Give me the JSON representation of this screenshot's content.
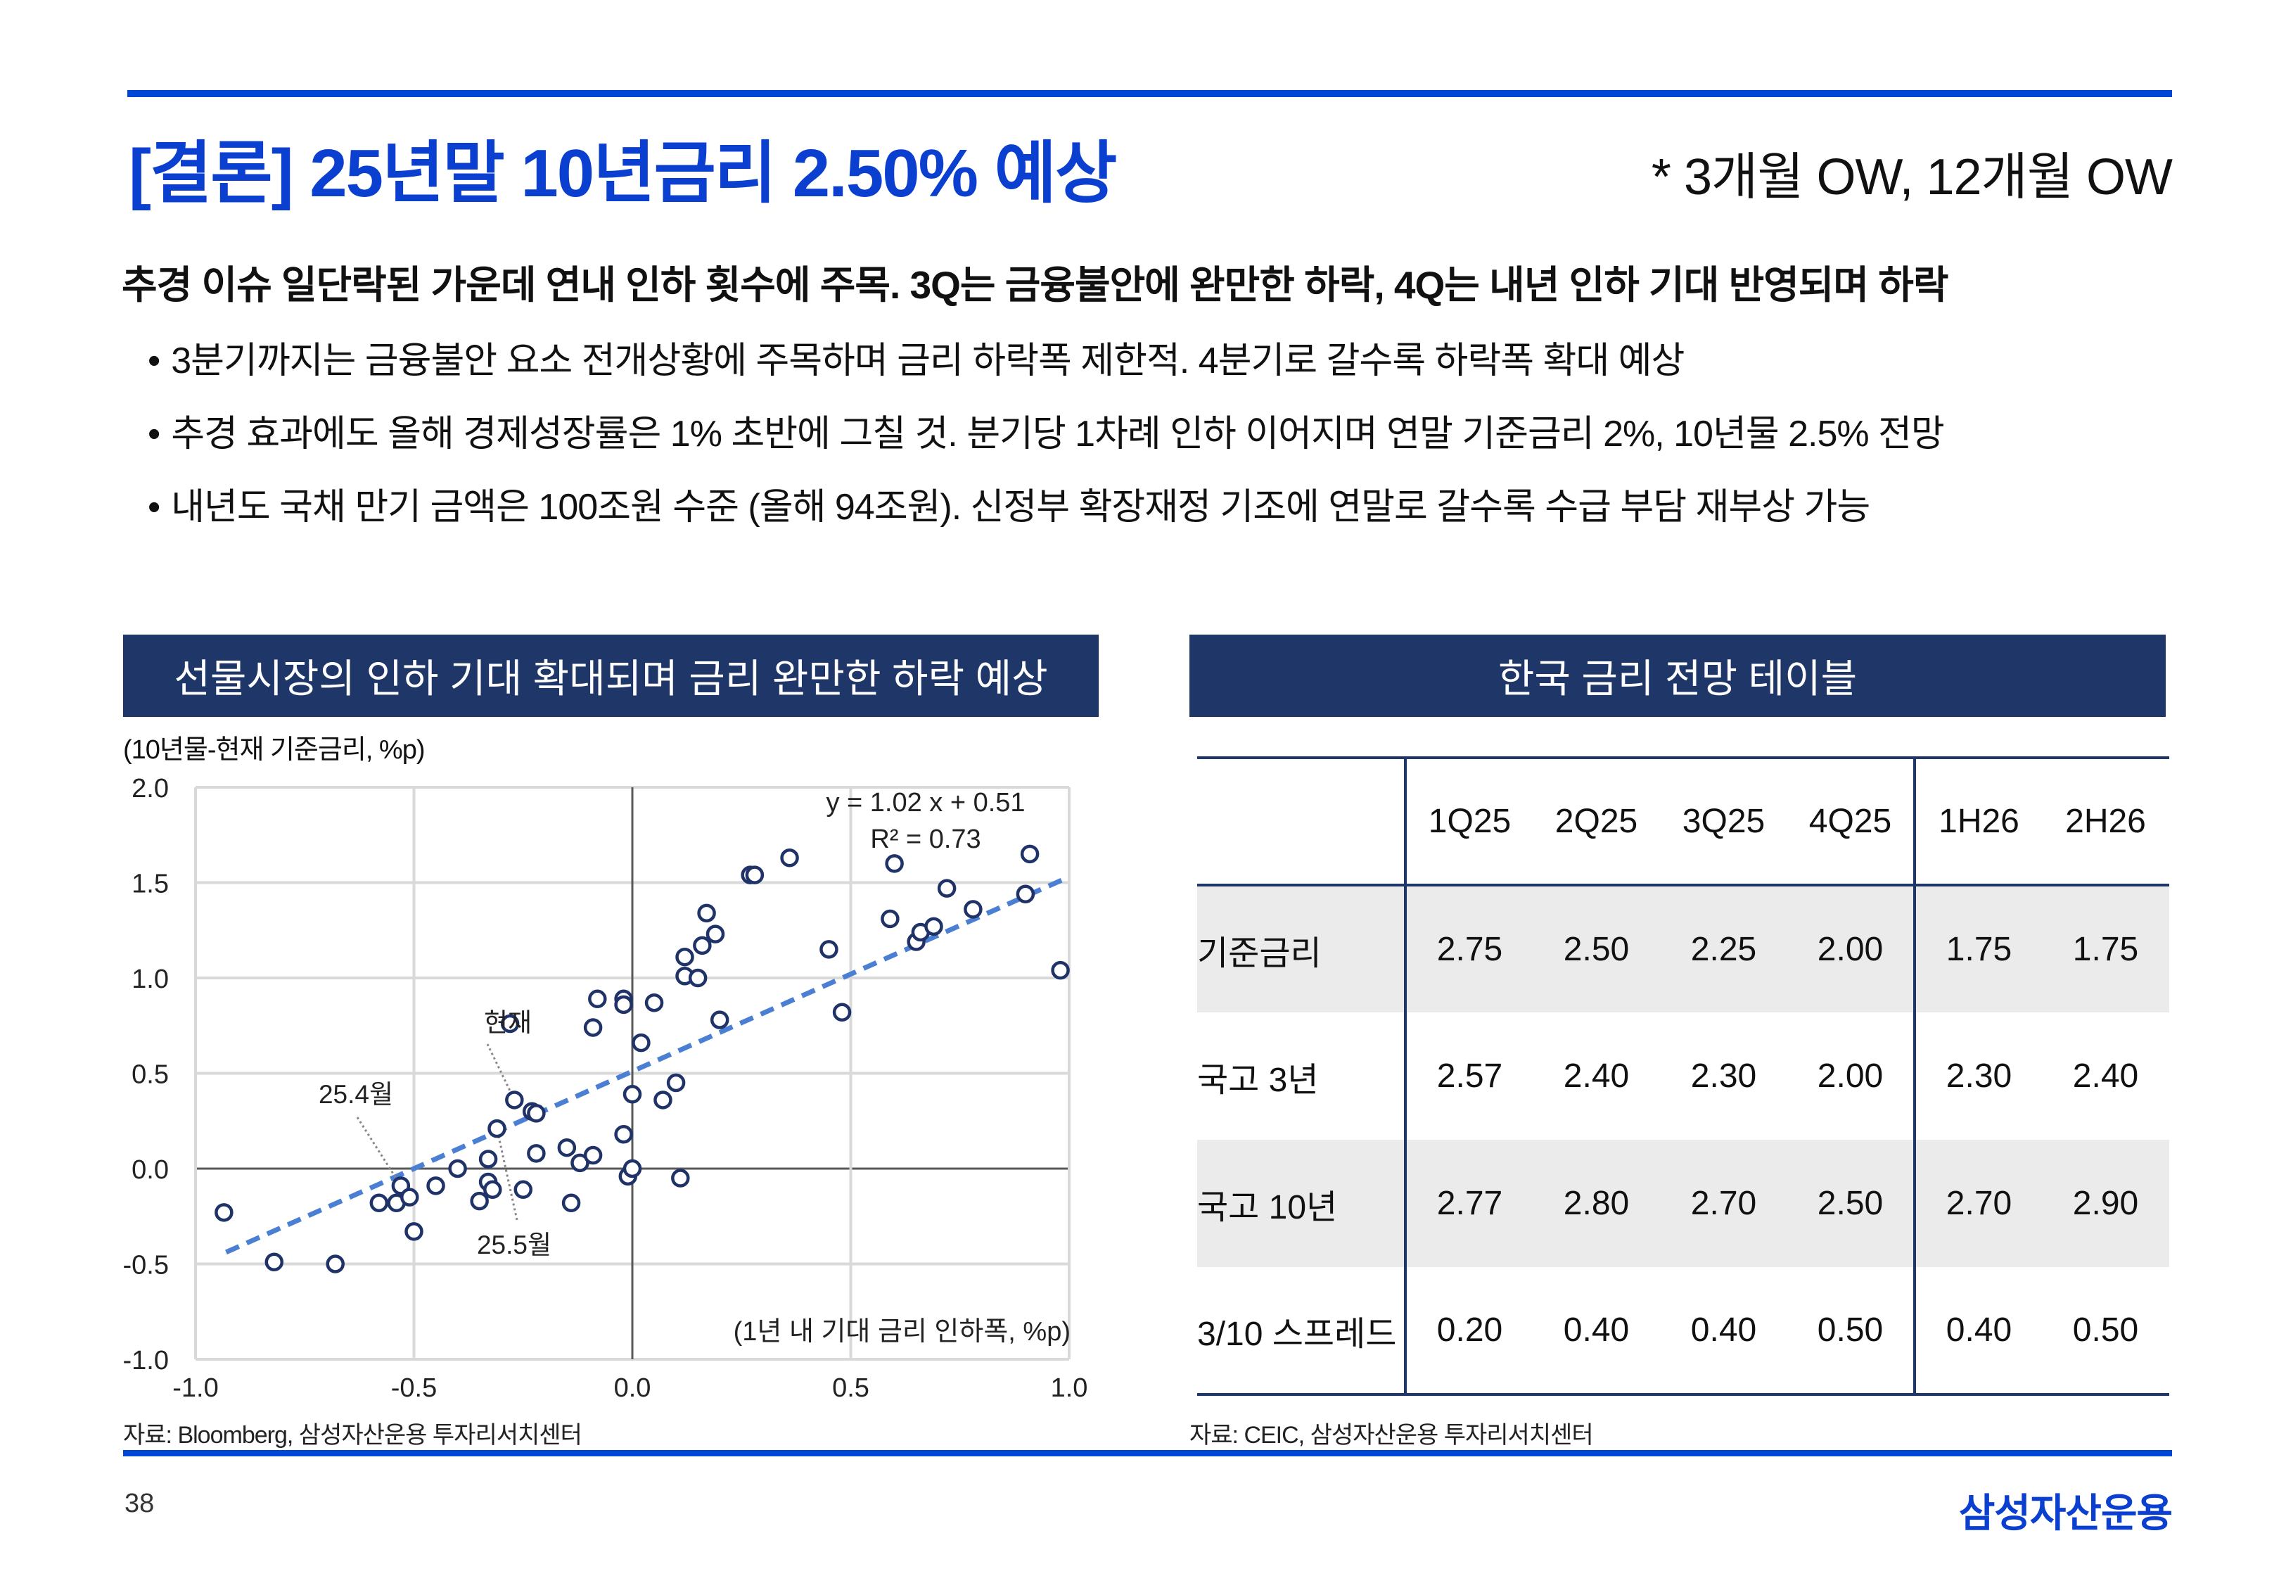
{
  "header": {
    "title": "[결론] 25년말 10년금리 2.50% 예상",
    "rating": "* 3개월 OW, 12개월 OW"
  },
  "summary": {
    "headline": "추경 이슈 일단락된 가운데 연내 인하 횟수에 주목. 3Q는 금융불안에 완만한 하락, 4Q는 내년 인하 기대 반영되며 하락",
    "bullets": [
      "3분기까지는 금융불안 요소 전개상황에 주목하며 금리 하락폭 제한적. 4분기로 갈수록 하락폭 확대 예상",
      "추경 효과에도 올해 경제성장률은 1% 초반에 그칠 것. 분기당 1차례 인하 이어지며 연말 기준금리 2%, 10년물 2.5% 전망",
      "내년도 국채 만기 금액은 100조원 수준 (올해 94조원). 신정부 확장재정 기조에 연말로 갈수록 수급 부담 재부상 가능"
    ]
  },
  "left_panel": {
    "title": "선물시장의 인하 기대 확대되며 금리 완만한 하락 예상",
    "unit": "(10년물-현재 기준금리, %p)",
    "source": "자료: Bloomberg, 삼성자산운용 투자리서치센터"
  },
  "chart_data": {
    "type": "scatter",
    "title": "선물시장의 인하 기대 확대되며 금리 완만한 하락 예상",
    "xlabel": "(1년 내 기대 금리 인하폭, %p)",
    "ylabel": "(10년물-현재 기준금리, %p)",
    "xlim": [
      -1.0,
      1.0
    ],
    "ylim": [
      -1.0,
      2.0
    ],
    "xticks": [
      "-1.0",
      "-0.5",
      "0.0",
      "0.5",
      "1.0"
    ],
    "yticks": [
      "2.0",
      "1.5",
      "1.0",
      "0.5",
      "0.0",
      "-0.5",
      "-1.0"
    ],
    "grid": true,
    "trendline": {
      "slope": 1.02,
      "intercept": 0.51,
      "equation": "y = 1.02 x + 0.51",
      "r2": "R² = 0.73",
      "x_range": [
        -0.93,
        1.0
      ]
    },
    "points": [
      [
        -0.935,
        -0.23
      ],
      [
        -0.82,
        -0.49
      ],
      [
        -0.68,
        -0.5
      ],
      [
        -0.58,
        -0.18
      ],
      [
        -0.54,
        -0.18
      ],
      [
        -0.53,
        -0.09
      ],
      [
        -0.51,
        -0.15
      ],
      [
        -0.5,
        -0.33
      ],
      [
        -0.45,
        -0.09
      ],
      [
        -0.4,
        0.0
      ],
      [
        -0.35,
        -0.17
      ],
      [
        -0.33,
        -0.07
      ],
      [
        -0.33,
        0.05
      ],
      [
        -0.32,
        -0.11
      ],
      [
        -0.31,
        0.21
      ],
      [
        -0.27,
        0.36
      ],
      [
        -0.28,
        0.76
      ],
      [
        -0.25,
        -0.11
      ],
      [
        -0.23,
        0.3
      ],
      [
        -0.22,
        0.29
      ],
      [
        -0.22,
        0.08
      ],
      [
        -0.15,
        0.11
      ],
      [
        -0.14,
        -0.18
      ],
      [
        -0.12,
        0.03
      ],
      [
        -0.09,
        0.74
      ],
      [
        -0.09,
        0.07
      ],
      [
        -0.08,
        0.89
      ],
      [
        -0.02,
        0.89
      ],
      [
        -0.02,
        0.86
      ],
      [
        -0.02,
        0.18
      ],
      [
        -0.01,
        -0.04
      ],
      [
        0.0,
        0.0
      ],
      [
        0.0,
        0.39
      ],
      [
        0.02,
        0.66
      ],
      [
        0.05,
        0.87
      ],
      [
        0.07,
        0.36
      ],
      [
        0.1,
        0.45
      ],
      [
        0.11,
        -0.05
      ],
      [
        0.12,
        1.11
      ],
      [
        0.12,
        1.01
      ],
      [
        0.15,
        1.0
      ],
      [
        0.16,
        1.17
      ],
      [
        0.17,
        1.34
      ],
      [
        0.19,
        1.23
      ],
      [
        0.2,
        0.78
      ],
      [
        0.27,
        1.54
      ],
      [
        0.28,
        1.54
      ],
      [
        0.36,
        1.63
      ],
      [
        0.45,
        1.15
      ],
      [
        0.48,
        0.82
      ],
      [
        0.59,
        1.31
      ],
      [
        0.6,
        1.6
      ],
      [
        0.65,
        1.19
      ],
      [
        0.66,
        1.24
      ],
      [
        0.69,
        1.27
      ],
      [
        0.72,
        1.47
      ],
      [
        0.78,
        1.36
      ],
      [
        0.9,
        1.44
      ],
      [
        0.91,
        1.65
      ],
      [
        0.98,
        1.04
      ]
    ],
    "annotations": [
      {
        "label": "현재",
        "point": [
          -0.27,
          0.36
        ]
      },
      {
        "label": "25.4월",
        "point": [
          -0.53,
          -0.09
        ]
      },
      {
        "label": "25.5월",
        "point": [
          -0.31,
          0.21
        ]
      }
    ],
    "colors": {
      "marker": "#1f3368",
      "trend": "#4a7fd4",
      "grid": "#d9d9d9",
      "axis": "#595959"
    }
  },
  "right_panel": {
    "title": "한국 금리 전망 테이블",
    "columns": [
      "1Q25",
      "2Q25",
      "3Q25",
      "4Q25",
      "1H26",
      "2H26"
    ],
    "rows": [
      {
        "label": "기준금리",
        "values": [
          "2.75",
          "2.50",
          "2.25",
          "2.00",
          "1.75",
          "1.75"
        ]
      },
      {
        "label": "국고 3년",
        "values": [
          "2.57",
          "2.40",
          "2.30",
          "2.00",
          "2.30",
          "2.40"
        ]
      },
      {
        "label": "국고 10년",
        "values": [
          "2.77",
          "2.80",
          "2.70",
          "2.50",
          "2.70",
          "2.90"
        ]
      },
      {
        "label": "3/10 스프레드",
        "values": [
          "0.20",
          "0.40",
          "0.40",
          "0.50",
          "0.40",
          "0.50"
        ]
      }
    ],
    "source": "자료: CEIC, 삼성자산운용 투자리서치센터"
  },
  "footer": {
    "page_number": "38",
    "logo": "삼성자산운용"
  }
}
